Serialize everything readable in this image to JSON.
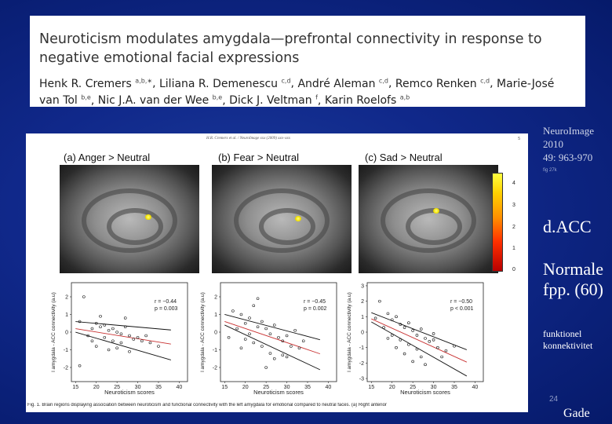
{
  "article": {
    "title": "Neuroticism modulates amygdala—prefrontal connectivity in response to negative emotional facial expressions",
    "authors": [
      {
        "name": "Henk R. Cremers",
        "aff": "a,b,∗"
      },
      {
        "name": "Liliana R. Demenescu",
        "aff": "c,d"
      },
      {
        "name": "André Aleman",
        "aff": "c,d"
      },
      {
        "name": "Remco Renken",
        "aff": "c,d"
      },
      {
        "name": "Marie-José van Tol",
        "aff": "b,e"
      },
      {
        "name": "Nic J.A. van der Wee",
        "aff": "b,e"
      },
      {
        "name": "Dick J. Veltman",
        "aff": "f"
      },
      {
        "name": "Karin Roelofs",
        "aff": "a,b"
      }
    ]
  },
  "figure": {
    "running_header": "H.R. Cremers et al. / NeuroImage xxx (2009) xxx–xxx",
    "page_number": "5",
    "panels": [
      {
        "label": "(a) Anger > Neutral",
        "r": "r = −0.44",
        "p": "p = 0.003"
      },
      {
        "label": "(b) Fear > Neutral",
        "r": "r = −0.45",
        "p": "p = 0.002"
      },
      {
        "label": "(c) Sad > Neutral",
        "r": "r = −0.50",
        "p": "p < 0.001"
      }
    ],
    "colorbar_ticks": [
      "4",
      "3",
      "2",
      "1",
      "0"
    ],
    "y_axis_label": "l amygdala - ACC connectivity (a.u)",
    "x_axis_label": "Neuroticism scores",
    "caption": "Fig. 1. Brain regions displaying association between neuroticism and functional connectivity with the left amygdala for emotional compared to neutral faces. (a) Right anterior"
  },
  "chart_data": [
    {
      "type": "scatter",
      "xlabel": "Neuroticism scores",
      "ylabel": "l amygdala - ACC connectivity (a.u)",
      "x_ticks": [
        15,
        20,
        25,
        30,
        35,
        40
      ],
      "y_ticks": [
        -2,
        -1,
        0,
        1,
        2
      ],
      "xlim": [
        14,
        42
      ],
      "ylim": [
        -2.8,
        2.8
      ],
      "annotation": "r = −0.44, p = 0.003",
      "points": [
        [
          17,
          2.0
        ],
        [
          16,
          0.6
        ],
        [
          19,
          0.2
        ],
        [
          20,
          0.5
        ],
        [
          21,
          0.3
        ],
        [
          22,
          0.4
        ],
        [
          23,
          0.1
        ],
        [
          24,
          0.2
        ],
        [
          25,
          0.0
        ],
        [
          26,
          -0.1
        ],
        [
          27,
          0.3
        ],
        [
          28,
          -0.2
        ],
        [
          29,
          -0.4
        ],
        [
          30,
          -0.3
        ],
        [
          18,
          -0.2
        ],
        [
          22,
          -0.3
        ],
        [
          24,
          -0.5
        ],
        [
          26,
          -0.6
        ],
        [
          31,
          -0.5
        ],
        [
          33,
          -0.6
        ],
        [
          35,
          -0.8
        ],
        [
          20,
          -0.8
        ],
        [
          23,
          -1.0
        ],
        [
          25,
          -0.9
        ],
        [
          28,
          -1.1
        ],
        [
          16,
          -1.9
        ],
        [
          21,
          0.9
        ],
        [
          27,
          0.8
        ],
        [
          32,
          -0.2
        ],
        [
          19,
          -0.5
        ]
      ]
    },
    {
      "type": "scatter",
      "xlabel": "Neuroticism scores",
      "ylabel": "l amygdala - ACC connectivity (a.u)",
      "x_ticks": [
        15,
        20,
        25,
        30,
        35,
        40
      ],
      "y_ticks": [
        -2,
        -1,
        0,
        1,
        2
      ],
      "xlim": [
        14,
        42
      ],
      "ylim": [
        -2.8,
        2.8
      ],
      "annotation": "r = −0.45, p = 0.002",
      "points": [
        [
          17,
          1.2
        ],
        [
          19,
          1.0
        ],
        [
          20,
          0.5
        ],
        [
          21,
          0.8
        ],
        [
          22,
          1.5
        ],
        [
          23,
          0.3
        ],
        [
          24,
          0.6
        ],
        [
          25,
          0.2
        ],
        [
          26,
          -0.1
        ],
        [
          27,
          0.4
        ],
        [
          28,
          -0.3
        ],
        [
          29,
          -0.5
        ],
        [
          30,
          -0.2
        ],
        [
          31,
          -0.8
        ],
        [
          33,
          -0.9
        ],
        [
          18,
          0.2
        ],
        [
          20,
          -0.4
        ],
        [
          22,
          -0.6
        ],
        [
          24,
          -0.8
        ],
        [
          26,
          -1.2
        ],
        [
          27,
          -1.5
        ],
        [
          29,
          -1.3
        ],
        [
          25,
          -2.0
        ],
        [
          23,
          1.9
        ],
        [
          16,
          -0.3
        ],
        [
          21,
          -0.1
        ],
        [
          30,
          -1.4
        ],
        [
          32,
          0.1
        ],
        [
          19,
          -0.9
        ],
        [
          34,
          -0.5
        ]
      ]
    },
    {
      "type": "scatter",
      "xlabel": "Neuroticism scores",
      "ylabel": "l amygdala - ACC connectivity (a.u)",
      "x_ticks": [
        15,
        20,
        25,
        30,
        35,
        40
      ],
      "y_ticks": [
        -3,
        -2,
        -1,
        0,
        1,
        2,
        3
      ],
      "xlim": [
        14,
        42
      ],
      "ylim": [
        -3.2,
        3.2
      ],
      "annotation": "r = −0.50, p < 0.001",
      "points": [
        [
          17,
          2.0
        ],
        [
          19,
          1.2
        ],
        [
          20,
          0.8
        ],
        [
          21,
          1.0
        ],
        [
          22,
          0.5
        ],
        [
          23,
          0.3
        ],
        [
          24,
          0.6
        ],
        [
          25,
          0.1
        ],
        [
          26,
          -0.2
        ],
        [
          27,
          0.2
        ],
        [
          28,
          -0.4
        ],
        [
          29,
          -0.6
        ],
        [
          30,
          -0.5
        ],
        [
          31,
          -1.0
        ],
        [
          33,
          -1.2
        ],
        [
          18,
          0.3
        ],
        [
          20,
          -0.2
        ],
        [
          22,
          -0.5
        ],
        [
          24,
          -0.8
        ],
        [
          26,
          -1.1
        ],
        [
          27,
          -1.6
        ],
        [
          28,
          -2.1
        ],
        [
          25,
          -1.9
        ],
        [
          16,
          0.9
        ],
        [
          21,
          -1.0
        ],
        [
          23,
          -1.4
        ],
        [
          30,
          -0.1
        ],
        [
          32,
          -1.6
        ],
        [
          19,
          -0.4
        ],
        [
          35,
          -0.9
        ]
      ]
    }
  ],
  "side": {
    "journal_name": "NeuroImage",
    "journal_year": "2010",
    "journal_pages": "49: 963-970",
    "small_note": "fig 27k",
    "region": "d.ACC",
    "normale_line1": "Normale",
    "normale_line2": "fpp. (60)",
    "funk_line1": "funktionel",
    "funk_line2": "konnektivitet"
  },
  "slide": {
    "page_number": "24",
    "author": "Gade"
  },
  "colors": {
    "background": "#10288a",
    "regression_red": "#c83030",
    "regression_black": "#111111"
  }
}
